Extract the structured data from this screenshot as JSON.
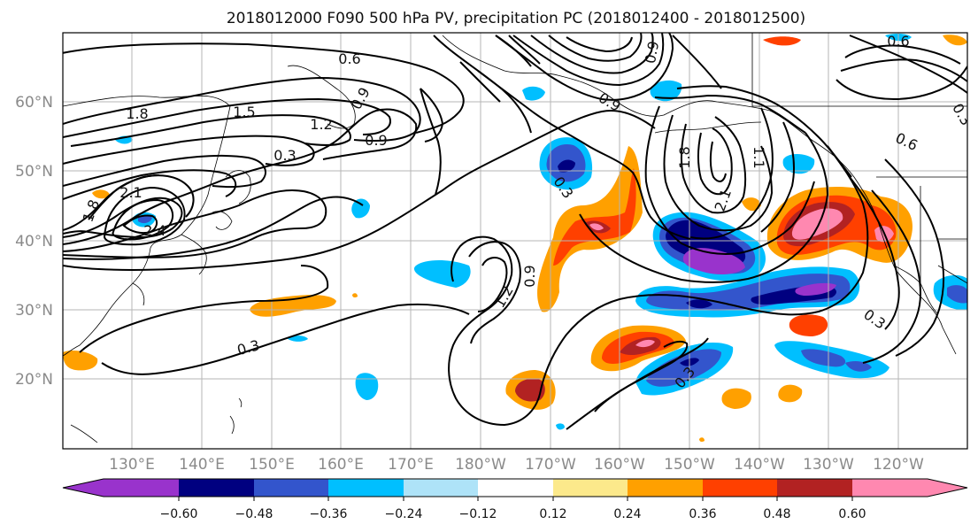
{
  "title": "2018012000 F090 500 hPa PV, precipitation PC (2018012400 - 2018012500)",
  "lat_labels": [
    "60°N",
    "50°N",
    "40°N",
    "30°N",
    "20°N"
  ],
  "lon_labels": [
    "130°E",
    "140°E",
    "150°E",
    "160°E",
    "170°E",
    "180°W",
    "170°W",
    "160°W",
    "150°W",
    "140°W",
    "130°W",
    "120°W"
  ],
  "colorbar": {
    "colors": [
      "#9933cc",
      "#000080",
      "#3355cc",
      "#00bfff",
      "#aee3f8",
      "#ffffff",
      "#fce98b",
      "#ffa000",
      "#ff4000",
      "#b22222",
      "#ff88b0"
    ],
    "tick_labels": [
      "−0.60",
      "−0.48",
      "−0.36",
      "−0.24",
      "−0.12",
      "0.12",
      "0.24",
      "0.36",
      "0.48",
      "0.60"
    ]
  },
  "contour_labels": [
    "0.6",
    "1.8",
    "1.5",
    "1.2",
    "0.9",
    "0.3",
    "2.1",
    "2.4",
    "1.8",
    "0.6",
    "0.9",
    "0.9",
    "1.2",
    "0.3",
    "0.3",
    "1.8",
    "2.1",
    "1.1",
    "0.6",
    "0.3",
    "0.3",
    "0.3",
    "0.9",
    "0.9"
  ],
  "colors": {
    "pv_contour": "#000000",
    "grid": "#b5b5b5",
    "axis_label": "#8a8a8a"
  }
}
